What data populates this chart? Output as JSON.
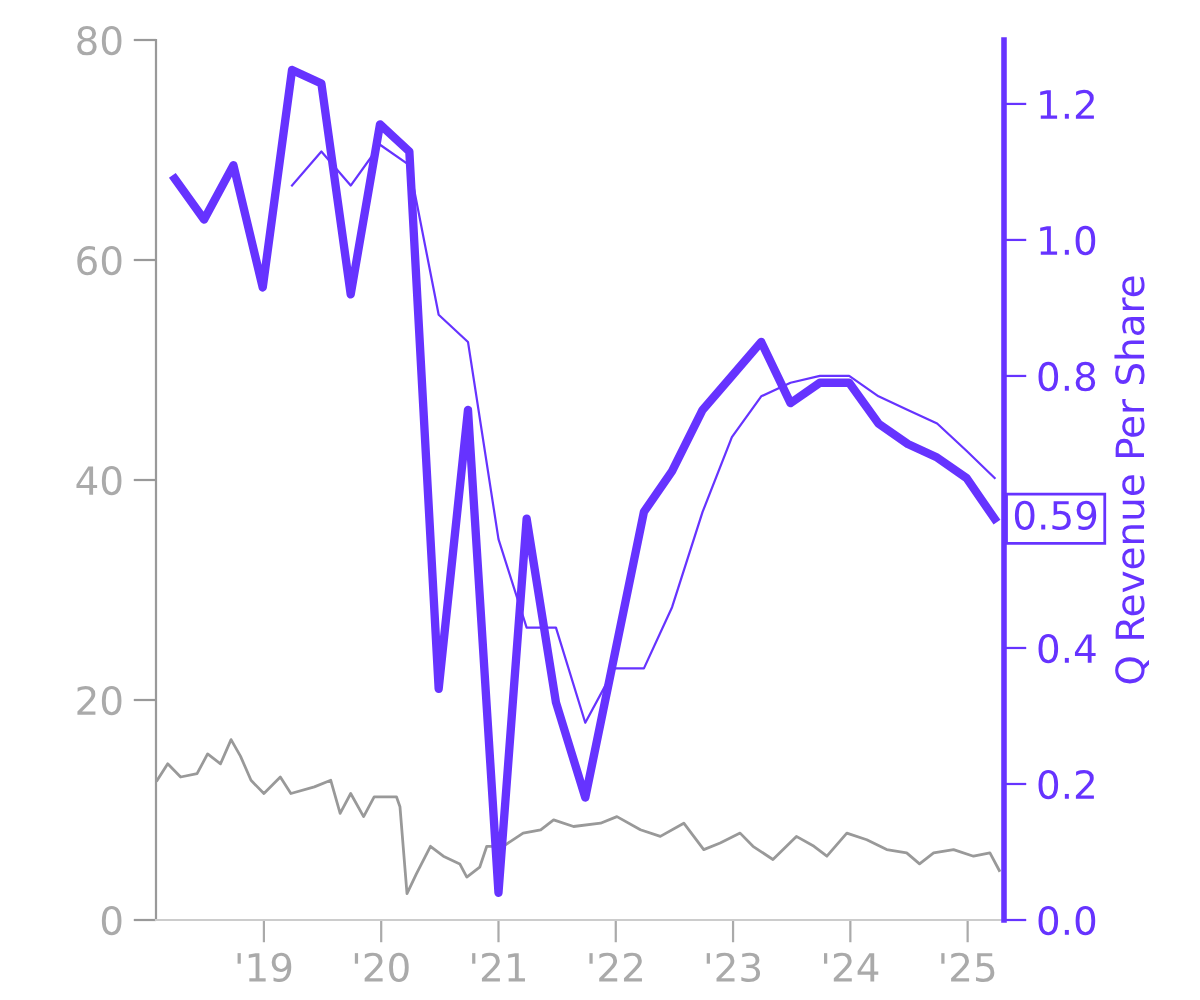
{
  "chart_data": {
    "type": "line",
    "y2label": "Q Revenue Per Share",
    "xlim": [
      2018.08,
      2025.31
    ],
    "xticks": [
      {
        "value": 2019,
        "label": "'19"
      },
      {
        "value": 2020,
        "label": "'20"
      },
      {
        "value": 2021,
        "label": "'21"
      },
      {
        "value": 2022,
        "label": "'22"
      },
      {
        "value": 2023,
        "label": "'23"
      },
      {
        "value": 2024,
        "label": "'24"
      },
      {
        "value": 2025,
        "label": "'25"
      }
    ],
    "ylim": [
      0,
      80
    ],
    "yticks": [
      0,
      20,
      40,
      60,
      80
    ],
    "y2lim": [
      0,
      1.294
    ],
    "y2ticks": [
      {
        "value": 0,
        "label": "0.0"
      },
      0.2,
      0.4,
      {
        "value": 0.6,
        "label": null
      },
      0.8,
      {
        "value": 1,
        "label": "1.0"
      },
      1.2
    ],
    "grid": false,
    "legend": false,
    "marker": "none",
    "line_style": "solid",
    "series": [
      {
        "color": "#999999",
        "axis": "y",
        "x": [
          2018.09,
          2018.18,
          2018.29,
          2018.43,
          2018.52,
          2018.63,
          2018.72,
          2018.8,
          2018.89,
          2019.0,
          2019.14,
          2019.23,
          2019.43,
          2019.57,
          2019.65,
          2019.74,
          2019.85,
          2019.94,
          2020.13,
          2020.16,
          2020.22,
          2020.3,
          2020.42,
          2020.53,
          2020.67,
          2020.73,
          2020.84,
          2020.9,
          2021.04,
          2021.21,
          2021.36,
          2021.47,
          2021.64,
          2021.87,
          2022.01,
          2022.21,
          2022.38,
          2022.58,
          2022.75,
          2022.89,
          2023.06,
          2023.17,
          2023.34,
          2023.54,
          2023.69,
          2023.8,
          2023.97,
          2024.14,
          2024.31,
          2024.48,
          2024.59,
          2024.71,
          2024.88,
          2025.05,
          2025.19,
          2025.27
        ],
        "values": [
          12.7,
          14.2,
          13.0,
          13.3,
          15.1,
          14.2,
          16.4,
          14.9,
          12.7,
          11.5,
          13.0,
          11.5,
          12.1,
          12.7,
          9.7,
          11.5,
          9.4,
          11.2,
          11.2,
          10.3,
          2.4,
          4.2,
          6.7,
          5.8,
          5.1,
          3.9,
          4.8,
          6.7,
          6.7,
          7.9,
          8.2,
          9.1,
          8.5,
          8.8,
          9.4,
          8.2,
          7.6,
          8.8,
          6.4,
          7.0,
          7.9,
          6.7,
          5.5,
          7.6,
          6.7,
          5.8,
          7.9,
          7.3,
          6.4,
          6.1,
          5.1,
          6.1,
          6.4,
          5.8,
          6.1,
          4.5
        ]
      },
      {
        "color": "#6633ff",
        "axis": "y2",
        "x": [
          2018.24,
          2018.49,
          2018.74,
          2018.99,
          2019.24,
          2019.49,
          2019.74,
          2019.99,
          2020.24,
          2020.49,
          2020.74,
          2021.0,
          2021.24,
          2021.49,
          2021.74,
          2022.24,
          2022.48,
          2022.74,
          2022.99,
          2023.24,
          2023.49,
          2023.74,
          2023.99,
          2024.24,
          2024.49,
          2024.74,
          2024.99,
          2025.23
        ],
        "values": [
          1.09,
          1.03,
          1.11,
          0.93,
          1.25,
          1.23,
          0.92,
          1.17,
          1.13,
          0.34,
          0.75,
          0.04,
          0.59,
          0.32,
          0.18,
          0.6,
          0.66,
          0.75,
          0.8,
          0.85,
          0.76,
          0.79,
          0.79,
          0.73,
          0.7,
          0.68,
          0.65,
          0.59
        ],
        "value_labels": [
          null,
          null,
          null,
          null,
          null,
          null,
          null,
          null,
          null,
          null,
          null,
          null,
          null,
          null,
          null,
          null,
          null,
          null,
          null,
          null,
          null,
          null,
          null,
          null,
          null,
          null,
          null,
          "0.59"
        ]
      },
      {
        "color": "#6633ff",
        "axis": "y2",
        "x": [
          2019.24,
          2019.49,
          2019.74,
          2019.99,
          2020.24,
          2020.49,
          2020.74,
          2021.0,
          2021.24,
          2021.49,
          2021.74,
          2021.99,
          2022.24,
          2022.48,
          2022.74,
          2022.99,
          2023.24,
          2023.49,
          2023.74,
          2023.99,
          2024.24,
          2024.49,
          2024.74,
          2024.99,
          2025.23
        ],
        "values": [
          1.08,
          1.13,
          1.08,
          1.14,
          1.11,
          0.89,
          0.85,
          0.56,
          0.43,
          0.43,
          0.29,
          0.37,
          0.37,
          0.46,
          0.6,
          0.71,
          0.77,
          0.79,
          0.8,
          0.8,
          0.77,
          0.75,
          0.73,
          0.69,
          0.65
        ]
      }
    ]
  }
}
